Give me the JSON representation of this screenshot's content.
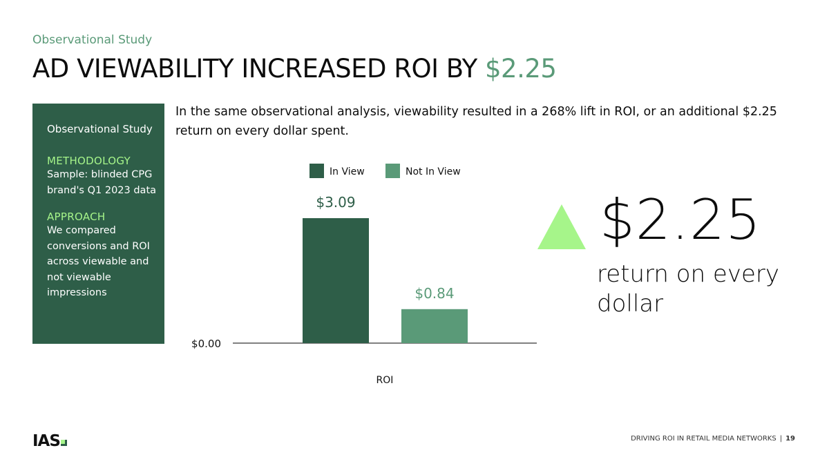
{
  "slide": {
    "eyebrow": "Observational Study",
    "title_main": "AD VIEWABILITY INCREASED ROI BY ",
    "title_accent": "$2.25",
    "description": "In the same observational analysis, viewability resulted in a 268% lift in ROI, or an additional $2.25 return on every dollar spent."
  },
  "sidebar": {
    "study": "Observational Study",
    "methodology_heading": "METHODOLOGY",
    "methodology_text": "Sample: blinded CPG brand's Q1 2023 data",
    "approach_heading": "APPROACH",
    "approach_text": "We compared conversions and ROI across viewable and not viewable impressions"
  },
  "callout": {
    "value": "$2.25",
    "subtitle": "return on every dollar",
    "arrow_color": "#a6f58a"
  },
  "footer": {
    "logo": "IAS",
    "text": "DRIVING ROI IN RETAIL MEDIA NETWORKS",
    "divider": "|",
    "page": "19"
  },
  "colors": {
    "dark_green": "#2e5e48",
    "mid_green": "#5a9a78",
    "lime": "#a6f58a"
  },
  "chart_data": {
    "type": "bar",
    "title": "",
    "categories": [
      "ROI"
    ],
    "series": [
      {
        "name": "In View",
        "values": [
          3.09
        ],
        "label": "$3.09",
        "color": "#2e5e48"
      },
      {
        "name": "Not In View",
        "values": [
          0.84
        ],
        "label": "$0.84",
        "color": "#5a9a78"
      }
    ],
    "y_tick_label": "$0.00",
    "xlabel": "",
    "ylabel": "",
    "ylim": [
      0,
      3.09
    ],
    "legend": "top",
    "grid": false
  }
}
